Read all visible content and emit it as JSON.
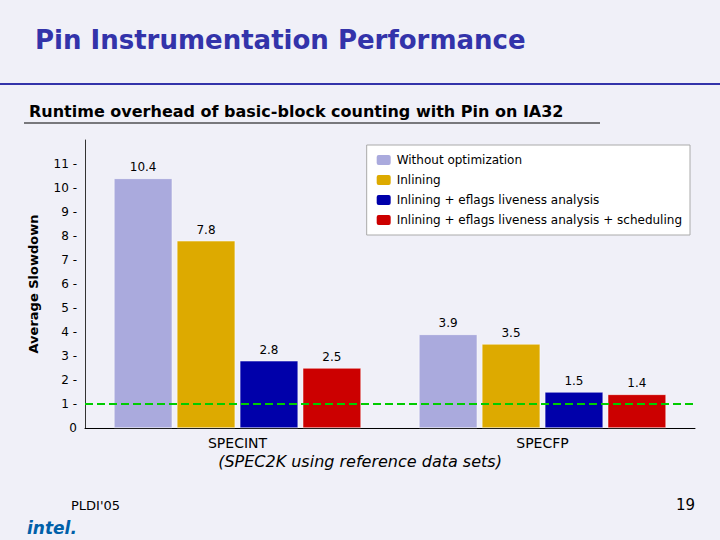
{
  "chart_data": {
    "type": "bar",
    "title": "Pin Instrumentation Performance",
    "subtitle": "Runtime overhead of basic-block counting with Pin on IA32",
    "ylabel": "Average Slowdown",
    "categories": [
      "SPECINT",
      "SPECFP"
    ],
    "series": [
      {
        "name": "Without optimization",
        "color": "#aaaadd",
        "values": [
          10.4,
          3.9
        ]
      },
      {
        "name": "Inlining",
        "color": "#ddaa00",
        "values": [
          7.8,
          3.5
        ]
      },
      {
        "name": "Inlining + eflags liveness analysis",
        "color": "#0000aa",
        "values": [
          2.8,
          1.5
        ]
      },
      {
        "name": "Inlining + eflags liveness analysis + scheduling",
        "color": "#cc0000",
        "values": [
          2.5,
          1.4
        ]
      }
    ],
    "ylim": [
      0,
      12.0
    ],
    "yticks": [
      0,
      {
        "value": 1,
        "label": "1 -"
      },
      {
        "value": 2,
        "label": "2 -"
      },
      {
        "value": 3,
        "label": "3 -"
      },
      {
        "value": 4,
        "label": "4 -"
      },
      {
        "value": 5,
        "label": "5 -"
      },
      {
        "value": 6,
        "label": "6 -"
      },
      {
        "value": 7,
        "label": "7 -"
      },
      {
        "value": 8,
        "label": "8 -"
      },
      {
        "value": 9,
        "label": "9 -"
      },
      {
        "value": 10,
        "label": "10 -"
      },
      {
        "value": 11,
        "label": "11 -"
      }
    ],
    "grid": false,
    "legend": "upper right",
    "data_labels": true,
    "hlines": [
      {
        "y": 1.0,
        "color": "#00cc00",
        "line_style": "dashed"
      }
    ],
    "footer": "(SPEC2K using reference data sets)",
    "slide_label": "PLDI'05",
    "page_number": "19",
    "logo": "intel."
  }
}
